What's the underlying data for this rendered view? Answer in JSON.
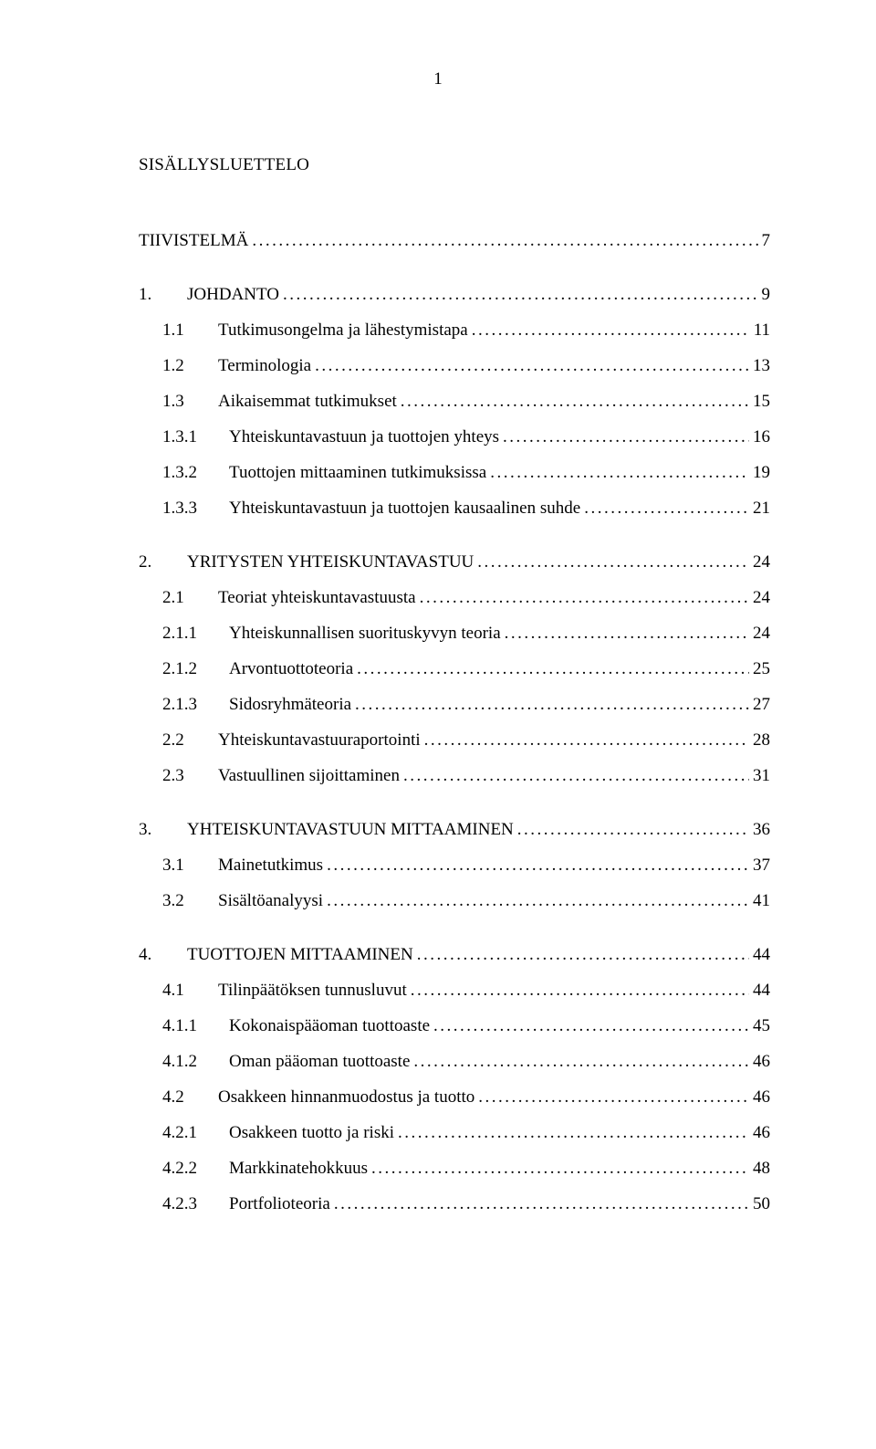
{
  "page_number": "1",
  "heading": "SISÄLLYSLUETTELO",
  "font_family": "Book Antiqua, Palatino, Palatino Linotype, Georgia, serif",
  "font_size_pt": 14,
  "text_color": "#000000",
  "background_color": "#ffffff",
  "entries": [
    {
      "level": 0,
      "num": "",
      "title": "TIIVISTELMÄ",
      "page": "7",
      "gap_before": 0
    },
    {
      "level": 0,
      "num": "1.",
      "title": "JOHDANTO",
      "page": "9",
      "gap_before": 40
    },
    {
      "level": 1,
      "num": "1.1",
      "title": "Tutkimusongelma ja lähestymistapa",
      "page": "11",
      "gap_before": 20
    },
    {
      "level": 1,
      "num": "1.2",
      "title": "Terminologia",
      "page": "13",
      "gap_before": 20
    },
    {
      "level": 1,
      "num": "1.3",
      "title": "Aikaisemmat tutkimukset",
      "page": "15",
      "gap_before": 20
    },
    {
      "level": 2,
      "num": "1.3.1",
      "title": "Yhteiskuntavastuun ja tuottojen yhteys",
      "page": "16",
      "gap_before": 20
    },
    {
      "level": 2,
      "num": "1.3.2",
      "title": "Tuottojen mittaaminen tutkimuksissa",
      "page": "19",
      "gap_before": 20
    },
    {
      "level": 2,
      "num": "1.3.3",
      "title": "Yhteiskuntavastuun ja tuottojen kausaalinen suhde",
      "page": "21",
      "gap_before": 20
    },
    {
      "level": 0,
      "num": "2.",
      "title": "YRITYSTEN YHTEISKUNTAVASTUU",
      "page": "24",
      "gap_before": 40
    },
    {
      "level": 1,
      "num": "2.1",
      "title": "Teoriat yhteiskuntavastuusta",
      "page": "24",
      "gap_before": 20
    },
    {
      "level": 2,
      "num": "2.1.1",
      "title": "Yhteiskunnallisen suorituskyvyn teoria",
      "page": "24",
      "gap_before": 20
    },
    {
      "level": 2,
      "num": "2.1.2",
      "title": "Arvontuottoteoria",
      "page": "25",
      "gap_before": 20
    },
    {
      "level": 2,
      "num": "2.1.3",
      "title": "Sidosryhmäteoria",
      "page": "27",
      "gap_before": 20
    },
    {
      "level": 1,
      "num": "2.2",
      "title": "Yhteiskuntavastuuraportointi",
      "page": "28",
      "gap_before": 20
    },
    {
      "level": 1,
      "num": "2.3",
      "title": "Vastuullinen sijoittaminen",
      "page": "31",
      "gap_before": 20
    },
    {
      "level": 0,
      "num": "3.",
      "title": "YHTEISKUNTAVASTUUN MITTAAMINEN",
      "page": "36",
      "gap_before": 40
    },
    {
      "level": 1,
      "num": "3.1",
      "title": "Mainetutkimus",
      "page": "37",
      "gap_before": 20
    },
    {
      "level": 1,
      "num": "3.2",
      "title": "Sisältöanalyysi",
      "page": "41",
      "gap_before": 20
    },
    {
      "level": 0,
      "num": "4.",
      "title": "TUOTTOJEN MITTAAMINEN",
      "page": "44",
      "gap_before": 40
    },
    {
      "level": 1,
      "num": "4.1",
      "title": "Tilinpäätöksen tunnusluvut",
      "page": "44",
      "gap_before": 20
    },
    {
      "level": 2,
      "num": "4.1.1",
      "title": "Kokonaispääoman tuottoaste",
      "page": "45",
      "gap_before": 20
    },
    {
      "level": 2,
      "num": "4.1.2",
      "title": "Oman pääoman tuottoaste",
      "page": "46",
      "gap_before": 20
    },
    {
      "level": 1,
      "num": "4.2",
      "title": "Osakkeen hinnanmuodostus ja tuotto",
      "page": "46",
      "gap_before": 20
    },
    {
      "level": 2,
      "num": "4.2.1",
      "title": "Osakkeen tuotto ja riski",
      "page": "46",
      "gap_before": 20
    },
    {
      "level": 2,
      "num": "4.2.2",
      "title": "Markkinatehokkuus",
      "page": "48",
      "gap_before": 20
    },
    {
      "level": 2,
      "num": "4.2.3",
      "title": "Portfolioteoria",
      "page": "50",
      "gap_before": 20
    }
  ]
}
